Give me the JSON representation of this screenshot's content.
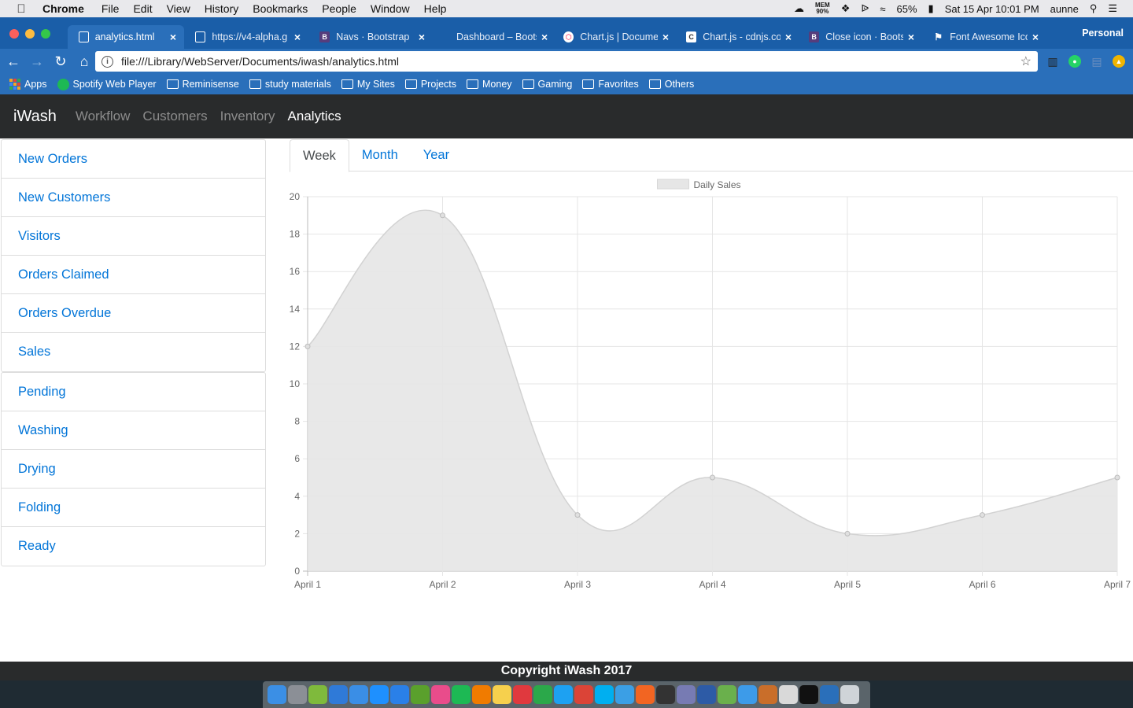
{
  "macos": {
    "menu": [
      "Chrome",
      "File",
      "Edit",
      "View",
      "History",
      "Bookmarks",
      "People",
      "Window",
      "Help"
    ],
    "status": {
      "mem_label": "MEM",
      "mem_value": "90%",
      "battery": "65%",
      "datetime": "Sat 15 Apr  10:01 PM",
      "user": "aunne"
    }
  },
  "browser": {
    "tabs": [
      {
        "title": "analytics.html",
        "icon": "page-icon",
        "active": true
      },
      {
        "title": "https://v4-alpha.g",
        "icon": "page-icon"
      },
      {
        "title": "Navs · Bootstrap",
        "icon": "bootstrap-icon"
      },
      {
        "title": "Dashboard – Boots",
        "icon": "none"
      },
      {
        "title": "Chart.js | Docume",
        "icon": "chartjs-icon"
      },
      {
        "title": "Chart.js - cdnjs.co",
        "icon": "cdnjs-icon"
      },
      {
        "title": "Close icon · Boots",
        "icon": "bootstrap-icon"
      },
      {
        "title": "Font Awesome Ico",
        "icon": "flag-icon"
      }
    ],
    "profile": "Personal",
    "url": "file:///Library/WebServer/Documents/iwash/analytics.html",
    "bookmarks": [
      "Apps",
      "Spotify Web Player",
      "Reminisense",
      "study materials",
      "My Sites",
      "Projects",
      "Money",
      "Gaming",
      "Favorites",
      "Others"
    ]
  },
  "app": {
    "brand": "iWash",
    "nav": [
      {
        "label": "Workflow"
      },
      {
        "label": "Customers"
      },
      {
        "label": "Inventory"
      },
      {
        "label": "Analytics",
        "active": true
      }
    ],
    "sidebar_group1": [
      "New Orders",
      "New Customers",
      "Visitors",
      "Orders Claimed",
      "Orders Overdue",
      "Sales"
    ],
    "sidebar_group2": [
      "Pending",
      "Washing",
      "Drying",
      "Folding",
      "Ready"
    ],
    "period_tabs": [
      {
        "label": "Week",
        "active": true
      },
      {
        "label": "Month"
      },
      {
        "label": "Year"
      }
    ],
    "footer": "Copyright iWash 2017"
  },
  "chart_data": {
    "type": "area",
    "categories": [
      "April 1",
      "April 2",
      "April 3",
      "April 4",
      "April 5",
      "April 6",
      "April 7"
    ],
    "series": [
      {
        "name": "Daily Sales",
        "values": [
          12,
          19,
          3,
          5,
          2,
          3,
          5
        ]
      }
    ],
    "ylim": [
      0,
      20
    ],
    "yticks": [
      0,
      2,
      4,
      6,
      8,
      10,
      12,
      14,
      16,
      18,
      20
    ],
    "grid": true,
    "legend": "top-center",
    "fill_color": "#e6e6e6",
    "line_color": "#d2d2d2"
  }
}
